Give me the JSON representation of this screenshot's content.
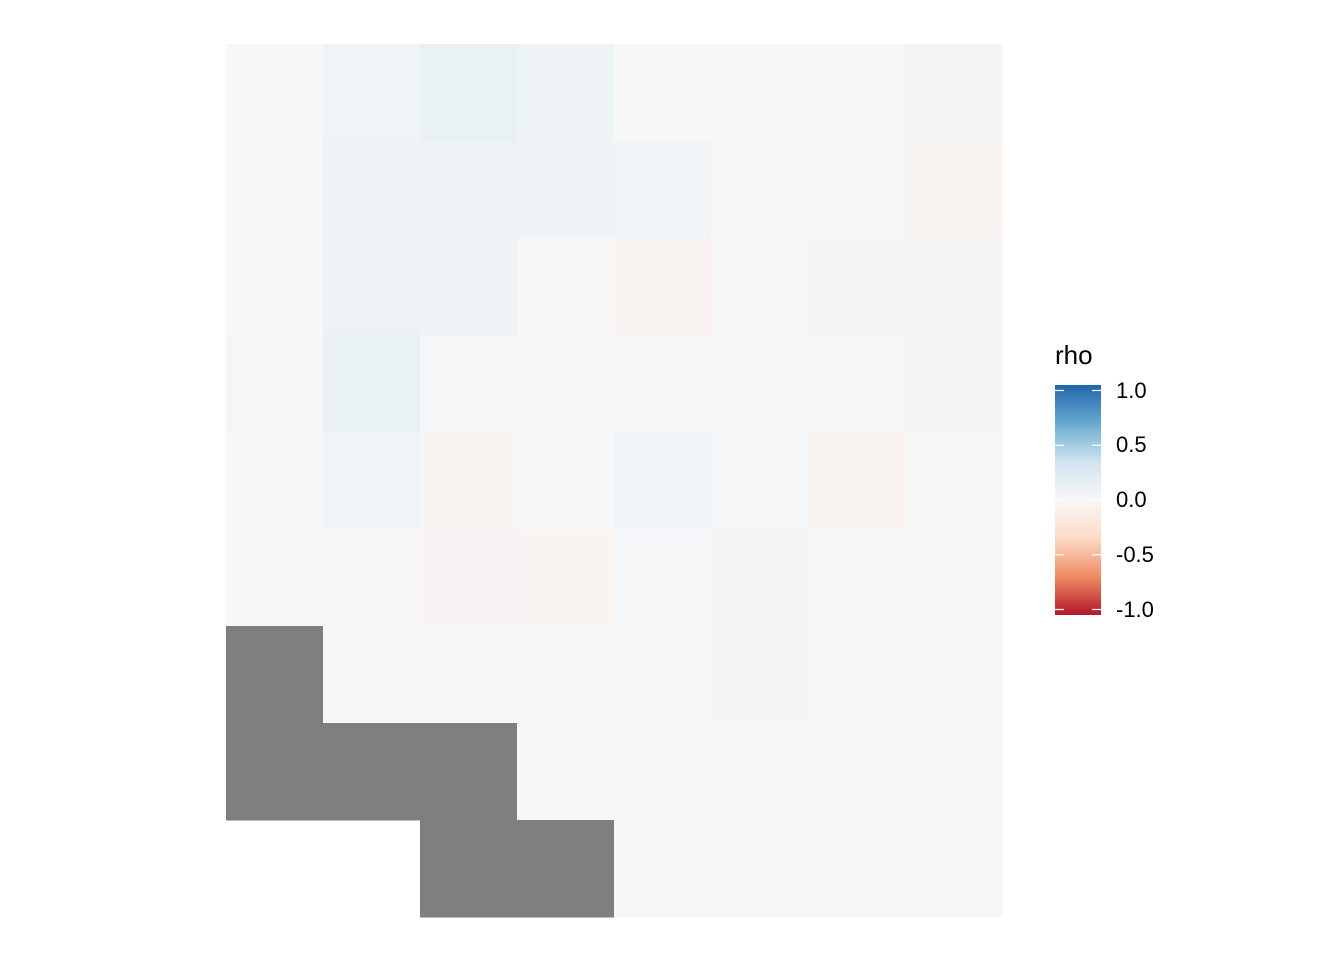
{
  "chart_data": {
    "type": "heatmap",
    "title": "",
    "xlabel": "",
    "ylabel": "",
    "n_cols": 8,
    "n_rows": 9,
    "values": [
      [
        0.0,
        0.06,
        0.12,
        0.08,
        0.0,
        -0.01,
        -0.01,
        0.03
      ],
      [
        0.0,
        0.08,
        0.1,
        0.08,
        0.05,
        0.0,
        -0.01,
        -0.04
      ],
      [
        0.0,
        0.1,
        0.08,
        0.01,
        -0.05,
        0.0,
        0.03,
        -0.02
      ],
      [
        -0.01,
        0.12,
        0.02,
        0.01,
        0.0,
        -0.01,
        -0.01,
        0.03
      ],
      [
        0.0,
        0.06,
        -0.04,
        0.0,
        0.05,
        0.02,
        -0.05,
        -0.01
      ],
      [
        0.0,
        -0.01,
        -0.03,
        -0.04,
        0.02,
        -0.02,
        -0.01,
        -0.01
      ],
      [
        null,
        0.0,
        0.0,
        0.0,
        -0.01,
        -0.02,
        -0.01,
        -0.01
      ],
      [
        null,
        null,
        null,
        0.0,
        0.0,
        -0.01,
        -0.01,
        -0.01
      ],
      [
        "blank",
        "blank",
        null,
        null,
        0.0,
        0.0,
        0.0,
        0.0
      ]
    ],
    "na_color": "#7f7f7f",
    "legend": {
      "title": "rho",
      "position": "right",
      "limits": [
        -1,
        1
      ],
      "ticks": [
        {
          "value": 1.0,
          "label": "1.0"
        },
        {
          "value": 0.5,
          "label": "0.5"
        },
        {
          "value": 0.0,
          "label": "0.0"
        },
        {
          "value": -0.5,
          "label": "-0.5"
        },
        {
          "value": -1.0,
          "label": "-1.0"
        }
      ],
      "colors": [
        "#b2182b",
        "#ef8a62",
        "#fddbc7",
        "#f7f7f7",
        "#d1e5f0",
        "#67a9cf",
        "#2166ac"
      ]
    }
  }
}
